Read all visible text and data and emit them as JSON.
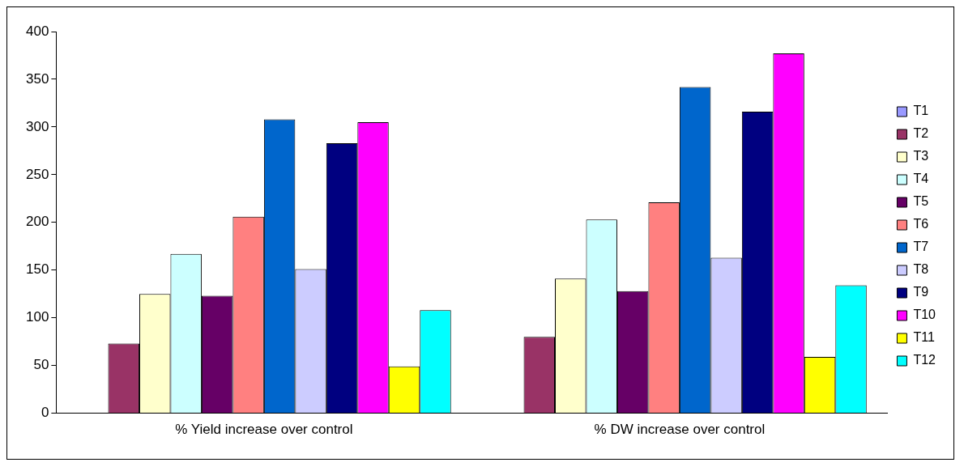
{
  "chart_data": {
    "type": "bar",
    "categories": [
      "% Yield increase over control",
      "% DW increase over control"
    ],
    "series": [
      {
        "name": "T1",
        "color": "#9999ff",
        "values": [
          0,
          0
        ]
      },
      {
        "name": "T2",
        "color": "#993366",
        "values": [
          73,
          80
        ]
      },
      {
        "name": "T3",
        "color": "#ffffcc",
        "values": [
          125,
          141
        ]
      },
      {
        "name": "T4",
        "color": "#ccffff",
        "values": [
          167,
          203
        ]
      },
      {
        "name": "T5",
        "color": "#660066",
        "values": [
          123,
          128
        ]
      },
      {
        "name": "T6",
        "color": "#ff8080",
        "values": [
          206,
          221
        ]
      },
      {
        "name": "T7",
        "color": "#0066cc",
        "values": [
          308,
          342
        ]
      },
      {
        "name": "T8",
        "color": "#ccccff",
        "values": [
          151,
          163
        ]
      },
      {
        "name": "T9",
        "color": "#000080",
        "values": [
          283,
          316
        ]
      },
      {
        "name": "T10",
        "color": "#ff00ff",
        "values": [
          305,
          377
        ]
      },
      {
        "name": "T11",
        "color": "#ffff00",
        "values": [
          49,
          59
        ]
      },
      {
        "name": "T12",
        "color": "#00ffff",
        "values": [
          108,
          134
        ]
      }
    ],
    "ylim": [
      0,
      400
    ],
    "yticks": [
      0,
      50,
      100,
      150,
      200,
      250,
      300,
      350,
      400
    ],
    "grid": false,
    "legend": "right"
  }
}
